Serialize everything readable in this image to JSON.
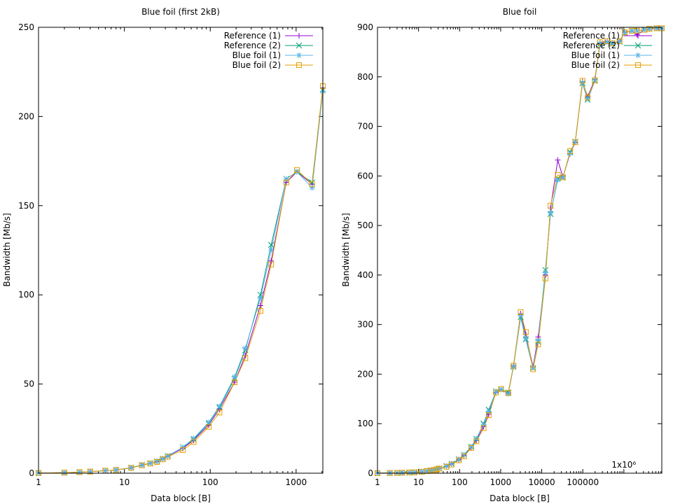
{
  "chart_data": [
    {
      "type": "line",
      "title": "Blue foil (first 2kB)",
      "xlabel": "Data block [B]",
      "ylabel": "Bandwidth [Mb/s]",
      "xscale": "log",
      "xlim": [
        1,
        2048
      ],
      "ylim": [
        0,
        250
      ],
      "xticks": [
        1,
        10,
        100,
        1000
      ],
      "xtick_labels": [
        "1",
        "10",
        "100",
        "1000"
      ],
      "yticks": [
        0,
        50,
        100,
        150,
        200,
        250
      ],
      "ytick_labels": [
        "0",
        "50",
        "100",
        "150",
        "200",
        "250"
      ],
      "legend_position": "top-right",
      "x": [
        1,
        2,
        3,
        4,
        6,
        8,
        12,
        16,
        20,
        24,
        28,
        32,
        48,
        64,
        96,
        128,
        192,
        256,
        384,
        512,
        768,
        1024,
        1536,
        2048
      ],
      "series": [
        {
          "name": "Reference (1)",
          "color": "#9400d3",
          "marker": "plus",
          "values": [
            0.1,
            0.3,
            0.6,
            0.9,
            1.4,
            1.8,
            3.0,
            4.5,
            5.5,
            6.5,
            8.0,
            9.5,
            14.0,
            18.5,
            27.0,
            36.0,
            51.0,
            66.0,
            94.0,
            119.0,
            163.0,
            169.0,
            162.0,
            216.0
          ]
        },
        {
          "name": "Reference (2)",
          "color": "#009e73",
          "marker": "cross",
          "values": [
            0.1,
            0.3,
            0.6,
            0.9,
            1.4,
            1.8,
            3.1,
            4.6,
            5.6,
            6.6,
            8.1,
            9.6,
            14.5,
            19.0,
            28.0,
            37.0,
            53.0,
            69.0,
            100.0,
            128.0,
            165.0,
            169.0,
            163.0,
            215.0
          ]
        },
        {
          "name": "Blue foil (1)",
          "color": "#56b4e9",
          "marker": "star",
          "values": [
            0.1,
            0.3,
            0.6,
            0.9,
            1.4,
            1.8,
            3.1,
            4.6,
            5.6,
            6.7,
            8.2,
            9.7,
            14.5,
            19.5,
            28.5,
            37.5,
            54.0,
            70.0,
            98.0,
            125.0,
            165.0,
            169.0,
            160.0,
            214.0
          ]
        },
        {
          "name": "Blue foil (2)",
          "color": "#e69f00",
          "marker": "square",
          "values": [
            0.1,
            0.3,
            0.6,
            0.9,
            1.4,
            1.8,
            3.0,
            4.4,
            5.4,
            6.3,
            7.8,
            9.2,
            13.0,
            17.5,
            26.0,
            34.0,
            51.0,
            64.5,
            91.0,
            117.0,
            163.0,
            170.0,
            162.0,
            217.0
          ]
        }
      ]
    },
    {
      "type": "line",
      "title": "Blue foil",
      "xlabel": "Data block [B]",
      "ylabel": "Bandwidth [Mb/s]",
      "xscale": "log",
      "xlim": [
        1,
        8388608
      ],
      "ylim": [
        0,
        900
      ],
      "xticks": [
        1,
        10,
        100,
        1000,
        10000,
        100000,
        1000000
      ],
      "xtick_labels": [
        "1",
        "10",
        "100",
        "1000",
        "10000",
        "100000",
        "1x10⁶"
      ],
      "yticks": [
        0,
        100,
        200,
        300,
        400,
        500,
        600,
        700,
        800,
        900
      ],
      "ytick_labels": [
        "0",
        "100",
        "200",
        "300",
        "400",
        "500",
        "600",
        "700",
        "800",
        "900"
      ],
      "legend_position": "top-right",
      "x": [
        1,
        2,
        3,
        4,
        6,
        8,
        12,
        16,
        20,
        24,
        28,
        32,
        48,
        64,
        96,
        128,
        192,
        256,
        384,
        512,
        768,
        1024,
        1536,
        2048,
        3072,
        4096,
        6144,
        8192,
        12288,
        16384,
        24576,
        32768,
        49152,
        65536,
        98304,
        131072,
        196608,
        262144,
        393216,
        524288,
        786432,
        1048576,
        1572864,
        2097152,
        3145728,
        4194304,
        6291456,
        8388608
      ],
      "series": [
        {
          "name": "Reference (1)",
          "color": "#9400d3",
          "marker": "plus",
          "values": [
            0.1,
            0.3,
            0.6,
            0.9,
            1.4,
            1.8,
            3.0,
            4.5,
            5.5,
            6.5,
            8.0,
            9.5,
            14.0,
            18.5,
            27.0,
            36.0,
            51.0,
            66.0,
            94.0,
            119.0,
            163.0,
            169.0,
            162.0,
            216.0,
            322.0,
            280.0,
            215.0,
            275.0,
            400.0,
            535.0,
            632.0,
            598.0,
            645.0,
            668.0,
            790.0,
            760.0,
            795.0,
            868.0,
            872.0,
            868.0,
            872.0,
            890.0,
            893.0,
            885.0,
            895.0,
            897.0,
            898.0,
            898.0
          ]
        },
        {
          "name": "Reference (2)",
          "color": "#009e73",
          "marker": "cross",
          "values": [
            0.1,
            0.3,
            0.6,
            0.9,
            1.4,
            1.8,
            3.1,
            4.6,
            5.6,
            6.6,
            8.1,
            9.6,
            14.5,
            19.0,
            28.0,
            37.0,
            53.0,
            69.0,
            100.0,
            128.0,
            165.0,
            169.0,
            163.0,
            215.0,
            315.0,
            270.0,
            212.0,
            265.0,
            410.0,
            523.0,
            595.0,
            597.0,
            648.0,
            669.0,
            787.0,
            754.0,
            792.0,
            866.0,
            870.0,
            867.0,
            871.0,
            889.0,
            893.0,
            893.0,
            895.0,
            897.0,
            898.0,
            898.0
          ]
        },
        {
          "name": "Blue foil (1)",
          "color": "#56b4e9",
          "marker": "star",
          "values": [
            0.1,
            0.3,
            0.6,
            0.9,
            1.4,
            1.8,
            3.1,
            4.6,
            5.6,
            6.7,
            8.2,
            9.7,
            14.5,
            19.5,
            28.5,
            37.5,
            54.0,
            70.0,
            98.0,
            125.0,
            165.0,
            169.0,
            160.0,
            214.0,
            318.0,
            272.0,
            213.0,
            268.0,
            405.0,
            525.0,
            592.0,
            598.0,
            646.0,
            669.0,
            788.0,
            756.0,
            793.0,
            867.0,
            870.0,
            868.0,
            871.0,
            889.0,
            893.0,
            893.0,
            895.0,
            897.0,
            898.0,
            898.0
          ]
        },
        {
          "name": "Blue foil (2)",
          "color": "#e69f00",
          "marker": "square",
          "values": [
            0.1,
            0.3,
            0.6,
            0.9,
            1.4,
            1.8,
            3.0,
            4.4,
            5.4,
            6.3,
            7.8,
            9.2,
            13.0,
            17.5,
            26.0,
            34.0,
            51.0,
            64.5,
            91.0,
            117.0,
            163.0,
            170.0,
            162.0,
            217.0,
            325.0,
            285.0,
            210.0,
            260.0,
            393.0,
            540.0,
            602.0,
            597.0,
            650.0,
            668.0,
            792.0,
            758.0,
            793.0,
            870.0,
            872.0,
            868.0,
            872.0,
            890.0,
            893.0,
            893.0,
            895.0,
            897.0,
            898.0,
            898.0
          ]
        }
      ]
    }
  ]
}
